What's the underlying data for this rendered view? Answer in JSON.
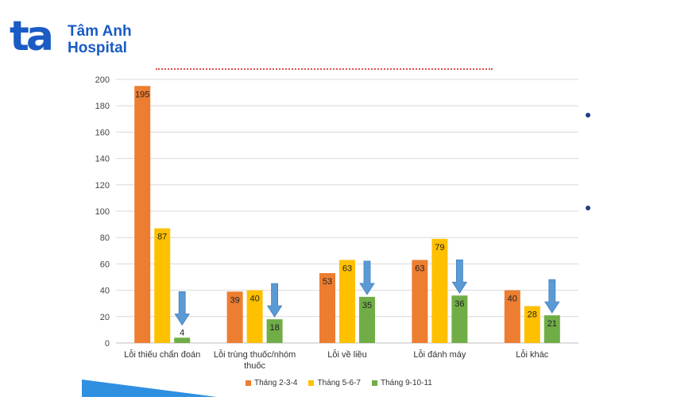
{
  "logo": {
    "mark": "ta",
    "line1": "Tâm Anh",
    "line2": "Hospital",
    "color": "#1a5bc4"
  },
  "chart_data": {
    "type": "bar",
    "categories": [
      "Lỗi thiếu chẩn đoán",
      "Lỗi trùng thuốc/nhóm thuốc",
      "Lỗi về liều",
      "Lỗi đánh máy",
      "Lỗi khác"
    ],
    "category_lines": [
      [
        "Lỗi thiếu chẩn đoán"
      ],
      [
        "Lỗi trùng thuốc/nhóm",
        "thuốc"
      ],
      [
        "Lỗi về liều"
      ],
      [
        "Lỗi đánh máy"
      ],
      [
        "Lỗi khác"
      ]
    ],
    "series": [
      {
        "name": "Tháng 2-3-4",
        "color": "#ed7d31",
        "values": [
          195,
          39,
          53,
          63,
          40
        ],
        "labels": [
          "195",
          "39",
          "53",
          "63",
          "40"
        ]
      },
      {
        "name": "Tháng 5-6-7",
        "color": "#ffc000",
        "values": [
          87,
          40,
          63,
          79,
          28
        ],
        "labels": [
          "87",
          "40",
          "63",
          "79",
          "28"
        ]
      },
      {
        "name": "Tháng 9-10-11",
        "color": "#70ad47",
        "values": [
          4,
          18,
          35,
          36,
          21
        ],
        "labels": [
          "4",
          "18",
          "35",
          "36",
          "21"
        ]
      }
    ],
    "ylim": [
      0,
      200
    ],
    "yticks": [
      "0",
      "20",
      "40",
      "60",
      "80",
      "100",
      "120",
      "140",
      "160",
      "180",
      "200"
    ],
    "grid": true,
    "legend_position": "bottom",
    "arrow_color": "#5b9bd5"
  }
}
